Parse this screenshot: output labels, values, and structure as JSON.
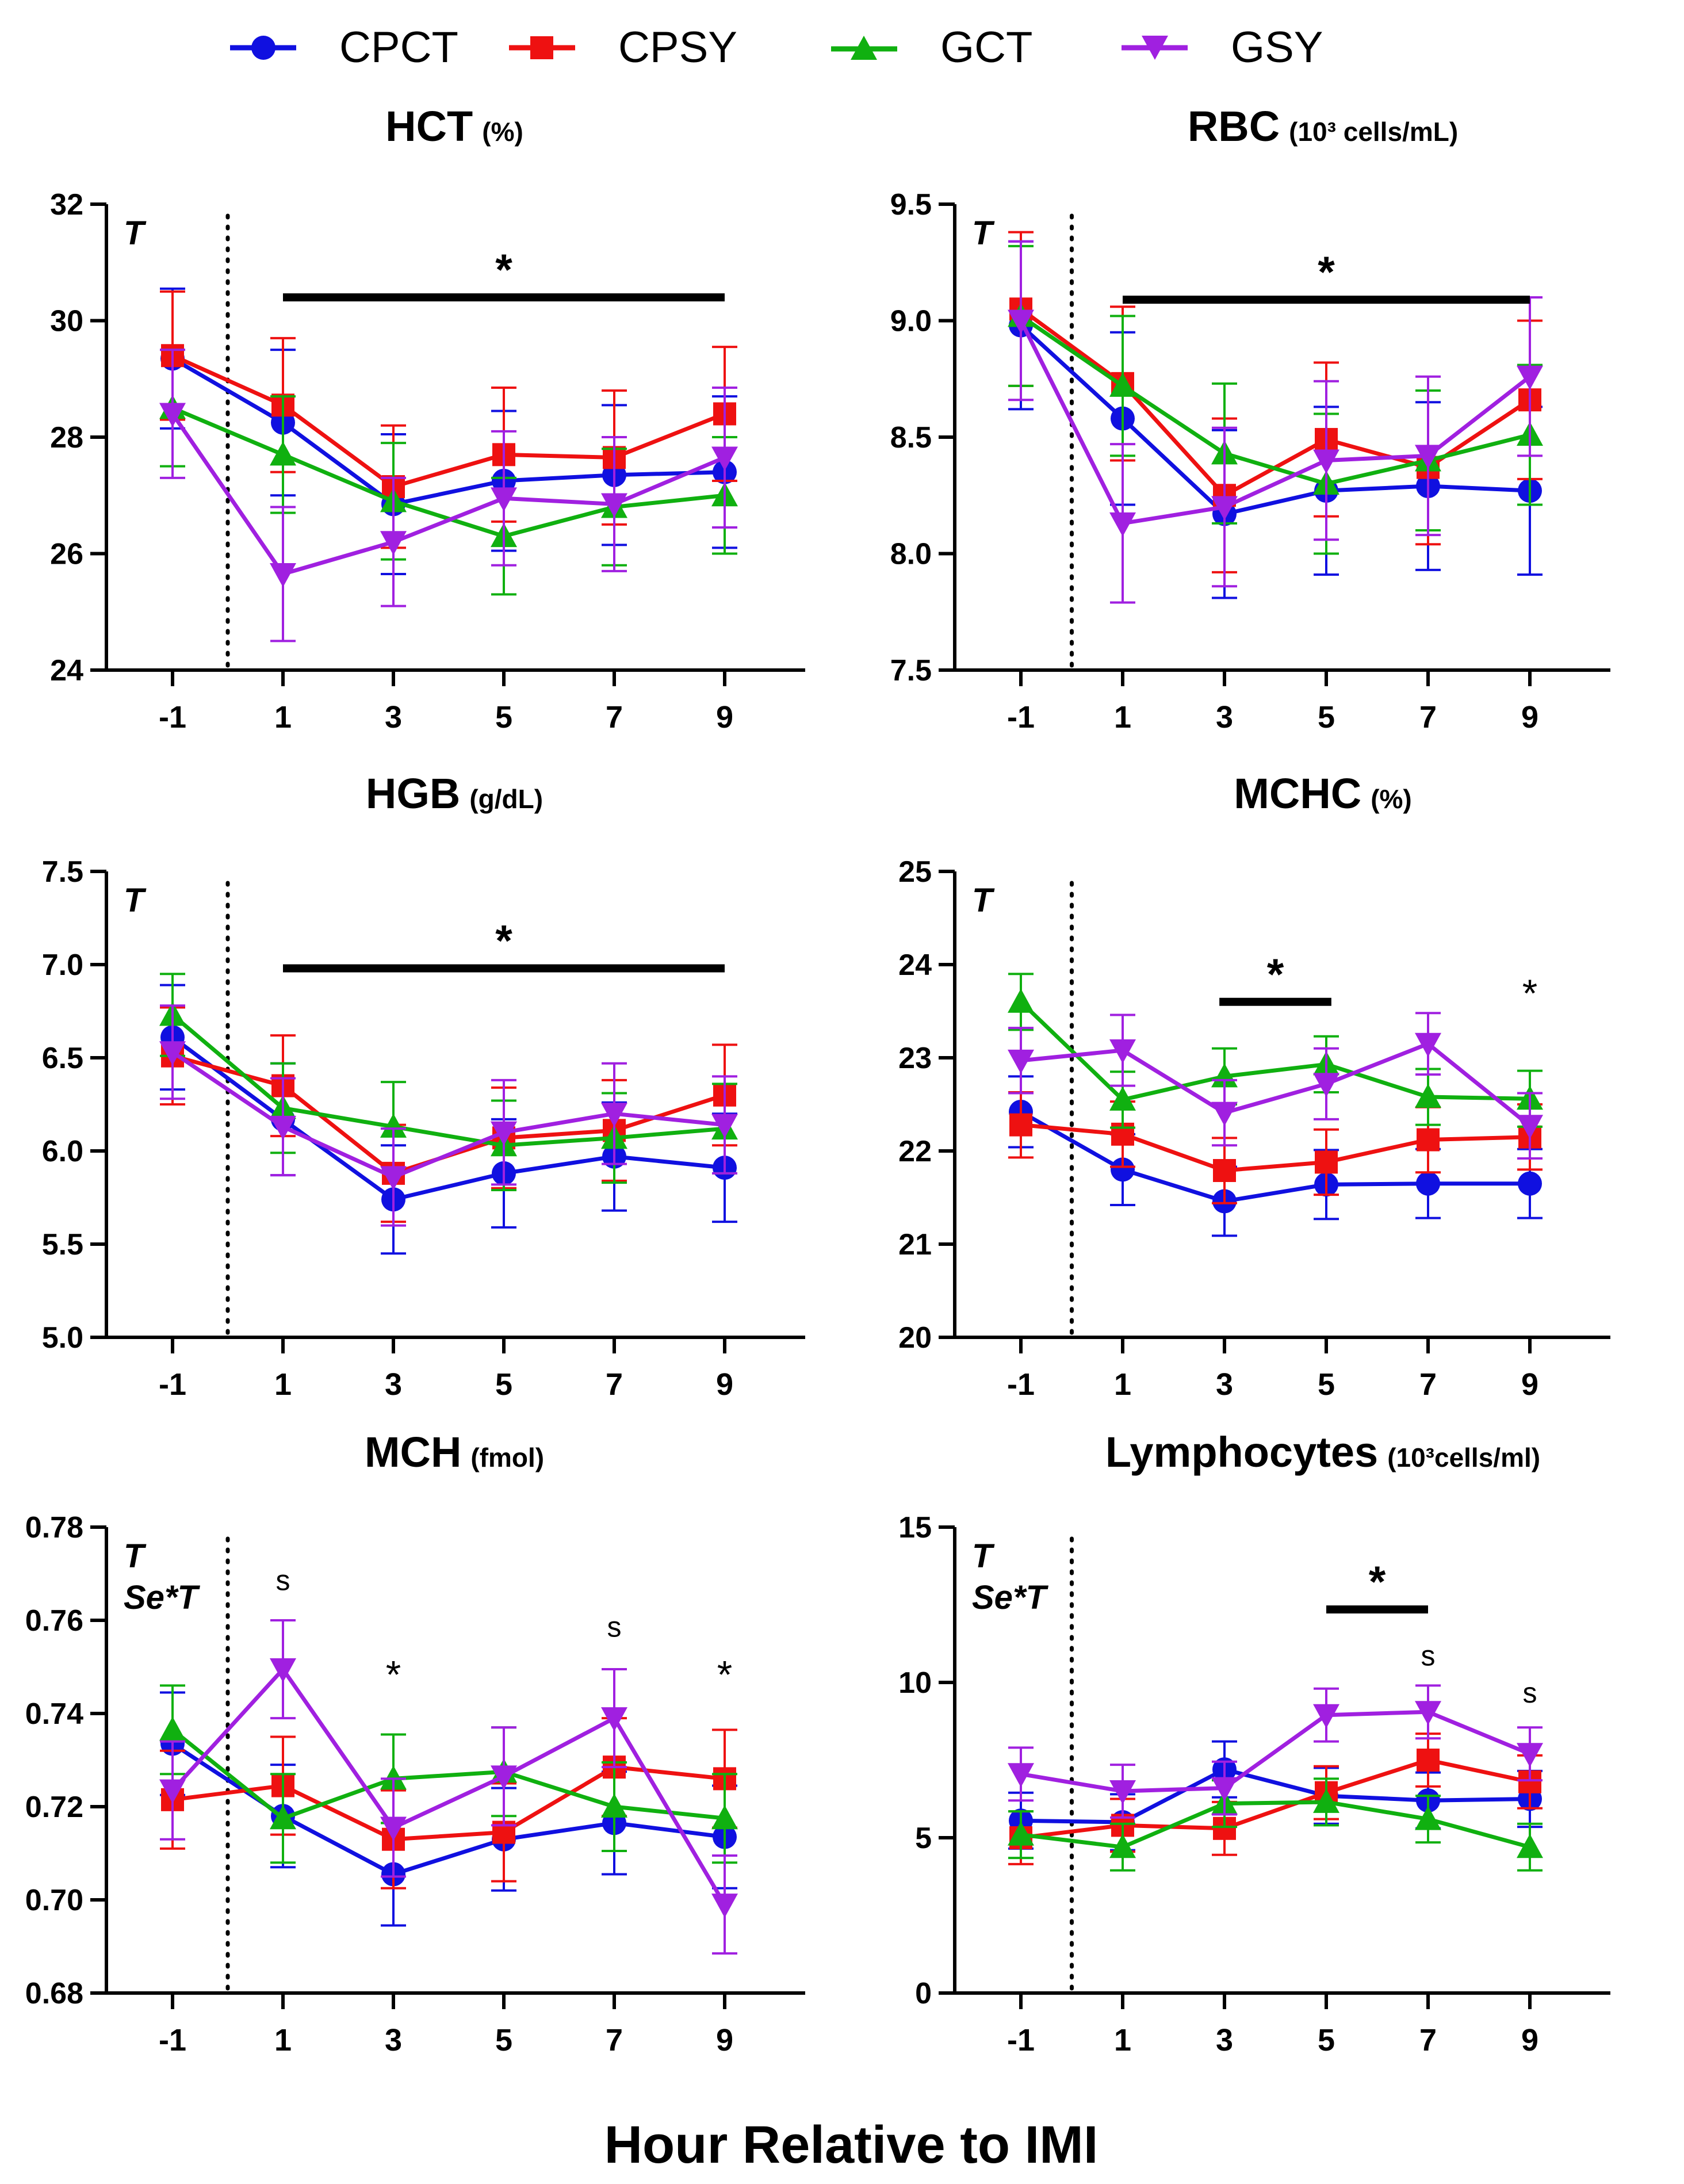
{
  "figure": {
    "xlabel": "Hour Relative to IMI",
    "legend": [
      {
        "name": "CPCT",
        "color": "#1010e0",
        "marker": "circle"
      },
      {
        "name": "CPSY",
        "color": "#ee1111",
        "marker": "square"
      },
      {
        "name": "GCT",
        "color": "#10b010",
        "marker": "triangle-up"
      },
      {
        "name": "GSY",
        "color": "#a020e0",
        "marker": "triangle-down"
      }
    ]
  },
  "chart_data": [
    {
      "type": "line",
      "title": "HCT",
      "unit": "(%)",
      "x": [
        -1,
        1,
        3,
        5,
        7,
        9
      ],
      "xticks": [
        "-1",
        "1",
        "3",
        "5",
        "7",
        "9"
      ],
      "ylim": [
        24,
        32
      ],
      "yticks": [
        24,
        26,
        28,
        30,
        32
      ],
      "ytick_labels": [
        "24",
        "26",
        "28",
        "30",
        "32"
      ],
      "effects": [
        "T"
      ],
      "series": [
        {
          "name": "CPCT",
          "values": [
            29.35,
            28.25,
            26.85,
            27.25,
            27.35,
            27.4
          ],
          "errors": [
            1.2,
            1.25,
            1.2,
            1.2,
            1.2,
            1.3
          ]
        },
        {
          "name": "CPSY",
          "values": [
            29.4,
            28.55,
            27.15,
            27.7,
            27.65,
            28.4
          ],
          "errors": [
            1.1,
            1.15,
            1.05,
            1.15,
            1.15,
            1.15
          ]
        },
        {
          "name": "GCT",
          "values": [
            28.5,
            27.7,
            26.9,
            26.3,
            26.8,
            27.0
          ],
          "errors": [
            1.0,
            1.0,
            1.0,
            1.0,
            1.0,
            1.0
          ]
        },
        {
          "name": "GSY",
          "values": [
            28.4,
            25.65,
            26.2,
            26.95,
            26.85,
            27.65
          ],
          "errors": [
            1.1,
            1.15,
            1.1,
            1.15,
            1.15,
            1.2
          ]
        }
      ],
      "sig_bars": [
        {
          "x_from": 1,
          "x_to": 9,
          "y": 30.4,
          "label": "*"
        }
      ],
      "sig_marks": []
    },
    {
      "type": "line",
      "title": "RBC",
      "unit": "(10³ cells/mL)",
      "x": [
        -1,
        1,
        3,
        5,
        7,
        9
      ],
      "xticks": [
        "-1",
        "1",
        "3",
        "5",
        "7",
        "9"
      ],
      "ylim": [
        7.5,
        9.5
      ],
      "yticks": [
        7.5,
        8.0,
        8.5,
        9.0,
        9.5
      ],
      "ytick_labels": [
        "7.5",
        "8.0",
        "8.5",
        "9.0",
        "9.5"
      ],
      "effects": [
        "T"
      ],
      "series": [
        {
          "name": "CPCT",
          "values": [
            8.98,
            8.58,
            8.17,
            8.27,
            8.29,
            8.27
          ],
          "errors": [
            0.36,
            0.37,
            0.36,
            0.36,
            0.36,
            0.36
          ]
        },
        {
          "name": "CPSY",
          "values": [
            9.05,
            8.73,
            8.25,
            8.49,
            8.37,
            8.66
          ],
          "errors": [
            0.33,
            0.33,
            0.33,
            0.33,
            0.33,
            0.34
          ]
        },
        {
          "name": "GCT",
          "values": [
            9.02,
            8.72,
            8.43,
            8.3,
            8.4,
            8.51
          ],
          "errors": [
            0.3,
            0.3,
            0.3,
            0.3,
            0.3,
            0.3
          ]
        },
        {
          "name": "GSY",
          "values": [
            9.0,
            8.13,
            8.2,
            8.4,
            8.42,
            8.76
          ],
          "errors": [
            0.34,
            0.34,
            0.34,
            0.34,
            0.34,
            0.34
          ]
        }
      ],
      "sig_bars": [
        {
          "x_from": 1,
          "x_to": 9,
          "y": 9.09,
          "label": "*"
        }
      ],
      "sig_marks": []
    },
    {
      "type": "line",
      "title": "HGB",
      "unit": "(g/dL)",
      "x": [
        -1,
        1,
        3,
        5,
        7,
        9
      ],
      "xticks": [
        "-1",
        "1",
        "3",
        "5",
        "7",
        "9"
      ],
      "ylim": [
        5.0,
        7.5
      ],
      "yticks": [
        5.0,
        5.5,
        6.0,
        6.5,
        7.0,
        7.5
      ],
      "ytick_labels": [
        "5.0",
        "5.5",
        "6.0",
        "6.5",
        "7.0",
        "7.5"
      ],
      "effects": [
        "T"
      ],
      "series": [
        {
          "name": "CPCT",
          "values": [
            6.61,
            6.17,
            5.74,
            5.88,
            5.97,
            5.91
          ],
          "errors": [
            0.28,
            0.3,
            0.29,
            0.29,
            0.29,
            0.29
          ]
        },
        {
          "name": "CPSY",
          "values": [
            6.51,
            6.35,
            5.88,
            6.07,
            6.11,
            6.3
          ],
          "errors": [
            0.26,
            0.27,
            0.26,
            0.27,
            0.27,
            0.27
          ]
        },
        {
          "name": "GCT",
          "values": [
            6.73,
            6.23,
            6.13,
            6.03,
            6.07,
            6.12
          ],
          "errors": [
            0.22,
            0.24,
            0.24,
            0.24,
            0.24,
            0.24
          ]
        },
        {
          "name": "GSY",
          "values": [
            6.53,
            6.13,
            5.86,
            6.1,
            6.2,
            6.14
          ],
          "errors": [
            0.25,
            0.26,
            0.26,
            0.28,
            0.27,
            0.26
          ]
        }
      ],
      "sig_bars": [
        {
          "x_from": 1,
          "x_to": 9,
          "y": 6.98,
          "label": "*"
        }
      ],
      "sig_marks": []
    },
    {
      "type": "line",
      "title": "MCHC",
      "unit": "(%)",
      "x": [
        -1,
        1,
        3,
        5,
        7,
        9
      ],
      "xticks": [
        "-1",
        "1",
        "3",
        "5",
        "7",
        "9"
      ],
      "ylim": [
        20,
        25
      ],
      "yticks": [
        20,
        21,
        22,
        23,
        24,
        25
      ],
      "ytick_labels": [
        "20",
        "21",
        "22",
        "23",
        "24",
        "25"
      ],
      "effects": [
        "T"
      ],
      "series": [
        {
          "name": "CPCT",
          "values": [
            22.42,
            21.8,
            21.46,
            21.64,
            21.65,
            21.65
          ],
          "errors": [
            0.38,
            0.38,
            0.37,
            0.37,
            0.37,
            0.37
          ]
        },
        {
          "name": "CPSY",
          "values": [
            22.28,
            22.18,
            21.79,
            21.88,
            22.12,
            22.15
          ],
          "errors": [
            0.35,
            0.35,
            0.35,
            0.35,
            0.35,
            0.35
          ]
        },
        {
          "name": "GCT",
          "values": [
            23.6,
            22.55,
            22.8,
            22.93,
            22.58,
            22.56
          ],
          "errors": [
            0.3,
            0.3,
            0.3,
            0.3,
            0.3,
            0.3
          ]
        },
        {
          "name": "GSY",
          "values": [
            22.97,
            23.08,
            22.41,
            22.72,
            23.15,
            22.27
          ],
          "errors": [
            0.35,
            0.38,
            0.35,
            0.38,
            0.33,
            0.35
          ]
        }
      ],
      "sig_bars": [
        {
          "x_from": 2.9,
          "x_to": 5.1,
          "y": 23.6,
          "label": "*"
        }
      ],
      "sig_marks": [
        {
          "x": 9,
          "y": 23.55,
          "label": "*"
        }
      ]
    },
    {
      "type": "line",
      "title": "MCH",
      "unit": "(fmol)",
      "x": [
        -1,
        1,
        3,
        5,
        7,
        9
      ],
      "xticks": [
        "-1",
        "1",
        "3",
        "5",
        "7",
        "9"
      ],
      "ylim": [
        0.68,
        0.78
      ],
      "yticks": [
        0.68,
        0.7,
        0.72,
        0.74,
        0.76,
        0.78
      ],
      "ytick_labels": [
        "0.68",
        "0.70",
        "0.72",
        "0.74",
        "0.76",
        "0.78"
      ],
      "effects": [
        "T",
        "Se*T"
      ],
      "series": [
        {
          "name": "CPCT",
          "values": [
            0.7335,
            0.718,
            0.7055,
            0.713,
            0.7165,
            0.7135
          ],
          "errors": [
            0.011,
            0.011,
            0.011,
            0.011,
            0.011,
            0.011
          ]
        },
        {
          "name": "CPSY",
          "values": [
            0.7215,
            0.7245,
            0.713,
            0.7145,
            0.7285,
            0.726
          ],
          "errors": [
            0.0105,
            0.0105,
            0.0105,
            0.0105,
            0.0105,
            0.0105
          ]
        },
        {
          "name": "GCT",
          "values": [
            0.7365,
            0.7175,
            0.726,
            0.7275,
            0.72,
            0.7175
          ],
          "errors": [
            0.0095,
            0.0095,
            0.0095,
            0.0095,
            0.0095,
            0.0095
          ]
        },
        {
          "name": "GSY",
          "values": [
            0.7235,
            0.7495,
            0.7155,
            0.7265,
            0.739,
            0.699
          ],
          "errors": [
            0.0105,
            0.0105,
            0.0105,
            0.0105,
            0.0105,
            0.0105
          ]
        }
      ],
      "sig_bars": [],
      "sig_marks": [
        {
          "x": 1,
          "y": 0.7665,
          "label": "s"
        },
        {
          "x": 3,
          "y": 0.7455,
          "label": "*"
        },
        {
          "x": 7,
          "y": 0.7565,
          "label": "s"
        },
        {
          "x": 9,
          "y": 0.7455,
          "label": "*"
        }
      ]
    },
    {
      "type": "line",
      "title": "Lymphocytes",
      "unit": "(10³cells/ml)",
      "x": [
        -1,
        1,
        3,
        5,
        7,
        9
      ],
      "xticks": [
        "-1",
        "1",
        "3",
        "5",
        "7",
        "9"
      ],
      "ylim": [
        0,
        15
      ],
      "yticks": [
        0,
        5,
        10,
        15
      ],
      "ytick_labels": [
        "0",
        "5",
        "10",
        "15"
      ],
      "effects": [
        "T",
        "Se*T"
      ],
      "series": [
        {
          "name": "CPCT",
          "values": [
            5.55,
            5.5,
            7.2,
            6.35,
            6.2,
            6.25
          ],
          "errors": [
            0.9,
            0.9,
            0.9,
            0.9,
            0.9,
            0.9
          ]
        },
        {
          "name": "CPSY",
          "values": [
            5.0,
            5.4,
            5.3,
            6.45,
            7.5,
            6.8
          ],
          "errors": [
            0.85,
            0.85,
            0.85,
            0.85,
            0.85,
            0.85
          ]
        },
        {
          "name": "GCT",
          "values": [
            5.1,
            4.7,
            6.1,
            6.15,
            5.6,
            4.7
          ],
          "errors": [
            0.75,
            0.75,
            0.75,
            0.75,
            0.75,
            0.75
          ]
        },
        {
          "name": "GSY",
          "values": [
            7.05,
            6.5,
            6.6,
            8.95,
            9.05,
            7.7
          ],
          "errors": [
            0.85,
            0.85,
            0.85,
            0.85,
            0.85,
            0.85
          ]
        }
      ],
      "sig_bars": [
        {
          "x_from": 5,
          "x_to": 7,
          "y": 12.35,
          "label": "*"
        }
      ],
      "sig_marks": [
        {
          "x": 7,
          "y": 10.55,
          "label": "s"
        },
        {
          "x": 9,
          "y": 9.35,
          "label": "s"
        }
      ]
    }
  ]
}
